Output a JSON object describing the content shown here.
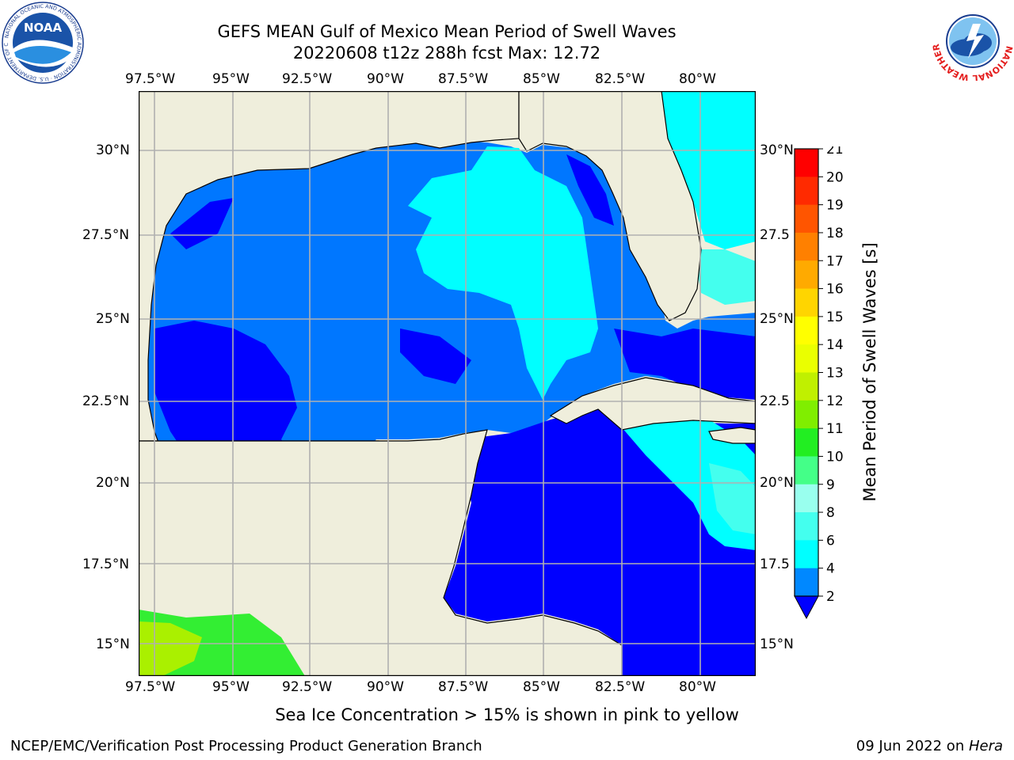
{
  "header": {
    "title_line1": "GEFS MEAN Gulf of Mexico Mean Period of Swell Waves",
    "title_line2": "20220608 t12z 288h fcst   Max: 12.72"
  },
  "logos": {
    "left": {
      "icon": "noaa-logo",
      "text": "NOAA",
      "ring": "NATIONAL OCEANIC AND ATMOSPHERIC ADMINISTRATION · U.S. DEPARTMENT OF COMMERCE"
    },
    "right": {
      "icon": "nws-logo",
      "ring": "NATIONAL WEATHER SERVICE"
    }
  },
  "map": {
    "lon_labels": [
      "97.5°W",
      "95°W",
      "92.5°W",
      "90°W",
      "87.5°W",
      "85°W",
      "82.5°W",
      "80°W"
    ],
    "lat_labels_left": [
      "30°N",
      "27.5°N",
      "25°N",
      "22.5°N",
      "20°N",
      "17.5°N",
      "15°N"
    ],
    "lat_labels_right": [
      "30°N",
      "27.5",
      "25°N",
      "22.5",
      "20°N",
      "17.5",
      "15°N"
    ],
    "colors": {
      "land": "#efeedc",
      "band_2_4": "#0077ff",
      "band_lt2": "#0000ff",
      "band_4_6": "#00ffff",
      "band_6_8": "#44ffee",
      "band_10_11": "#33ee33",
      "band_12_13": "#aaf000"
    }
  },
  "colorbar": {
    "label": "Mean Period of Swell Waves [s]",
    "ticks": [
      "21",
      "20",
      "19",
      "18",
      "17",
      "16",
      "15",
      "14",
      "13",
      "12",
      "11",
      "10",
      "9",
      "8",
      "6",
      "4",
      "2"
    ],
    "colors": [
      "#ff0000",
      "#ff2a00",
      "#ff5500",
      "#ff8000",
      "#ffaa00",
      "#ffd500",
      "#ffff00",
      "#eaff00",
      "#c0f000",
      "#80ee00",
      "#22ee22",
      "#44ff88",
      "#99ffee",
      "#44ffee",
      "#00ffff",
      "#0088ff"
    ],
    "extend_color": "#0000ff"
  },
  "note": "Sea Ice Concentration > 15% is shown in pink to yellow",
  "footer": {
    "left": "NCEP/EMC/Verification Post Processing Product Generation Branch",
    "right_date": "09 Jun 2022 on ",
    "right_host": "Hera"
  }
}
